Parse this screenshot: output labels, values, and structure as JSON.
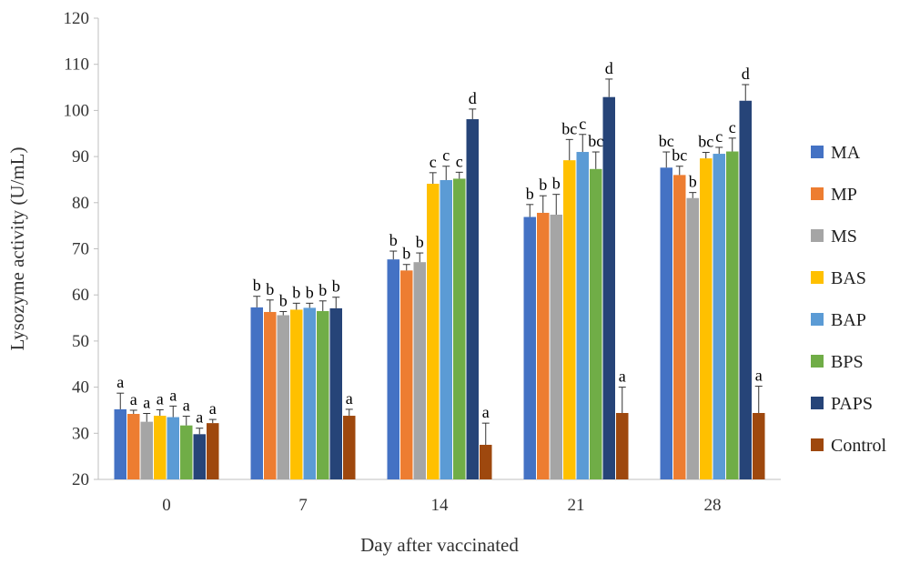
{
  "chart_data": {
    "type": "bar",
    "title": "",
    "xlabel": "Day after vaccinated",
    "ylabel": "Lysozyme activity (U/mL)",
    "ylim": [
      20,
      120
    ],
    "yticks": [
      20,
      30,
      40,
      50,
      60,
      70,
      80,
      90,
      100,
      110,
      120
    ],
    "grid": false,
    "legend_position": "right",
    "categories": [
      "0",
      "7",
      "14",
      "21",
      "28"
    ],
    "series": [
      {
        "name": "MA",
        "color": "#4472C4",
        "values": [
          35.2,
          57.3,
          67.7,
          76.9,
          87.6
        ],
        "errors": [
          3.5,
          2.4,
          1.8,
          2.7,
          3.4
        ],
        "labels": [
          "a",
          "b",
          "b",
          "b",
          "bc"
        ]
      },
      {
        "name": "MP",
        "color": "#ED7D31",
        "values": [
          34.2,
          56.3,
          65.3,
          77.8,
          86.0
        ],
        "errors": [
          0.8,
          2.6,
          1.3,
          3.7,
          1.9
        ],
        "labels": [
          "a",
          "b",
          "b",
          "b",
          "bc"
        ]
      },
      {
        "name": "MS",
        "color": "#A5A5A5",
        "values": [
          32.5,
          55.6,
          67.1,
          77.4,
          81.0
        ],
        "errors": [
          1.8,
          0.8,
          2.0,
          4.4,
          1.2
        ],
        "labels": [
          "a",
          "b",
          "b",
          "b",
          "b"
        ]
      },
      {
        "name": "BAS",
        "color": "#FFC000",
        "values": [
          33.8,
          56.8,
          84.1,
          89.2,
          89.6
        ],
        "errors": [
          1.3,
          1.4,
          2.4,
          4.5,
          1.3
        ],
        "labels": [
          "a",
          "b",
          "c",
          "bc",
          "bc"
        ]
      },
      {
        "name": "BAP",
        "color": "#5B9BD5",
        "values": [
          33.5,
          57.2,
          84.9,
          91.0,
          90.6
        ],
        "errors": [
          2.4,
          1.0,
          3.0,
          3.8,
          1.4
        ],
        "labels": [
          "a",
          "b",
          "c",
          "c",
          "c"
        ]
      },
      {
        "name": "BPS",
        "color": "#70AD47",
        "values": [
          31.7,
          56.5,
          85.2,
          87.3,
          91.1
        ],
        "errors": [
          2.0,
          2.2,
          1.4,
          3.7,
          2.9
        ],
        "labels": [
          "a",
          "b",
          "c",
          "bc",
          "c"
        ]
      },
      {
        "name": "PAPS",
        "color": "#264478",
        "values": [
          29.8,
          57.1,
          98.1,
          102.9,
          102.1
        ],
        "errors": [
          1.3,
          2.4,
          2.2,
          3.9,
          3.5
        ],
        "labels": [
          "a",
          "b",
          "d",
          "d",
          "d"
        ]
      },
      {
        "name": "Control",
        "color": "#9E480E",
        "values": [
          32.2,
          33.8,
          27.5,
          34.4,
          34.4
        ],
        "errors": [
          0.8,
          1.4,
          4.7,
          5.6,
          5.8
        ],
        "labels": [
          "a",
          "a",
          "a",
          "a",
          "a"
        ]
      }
    ]
  }
}
